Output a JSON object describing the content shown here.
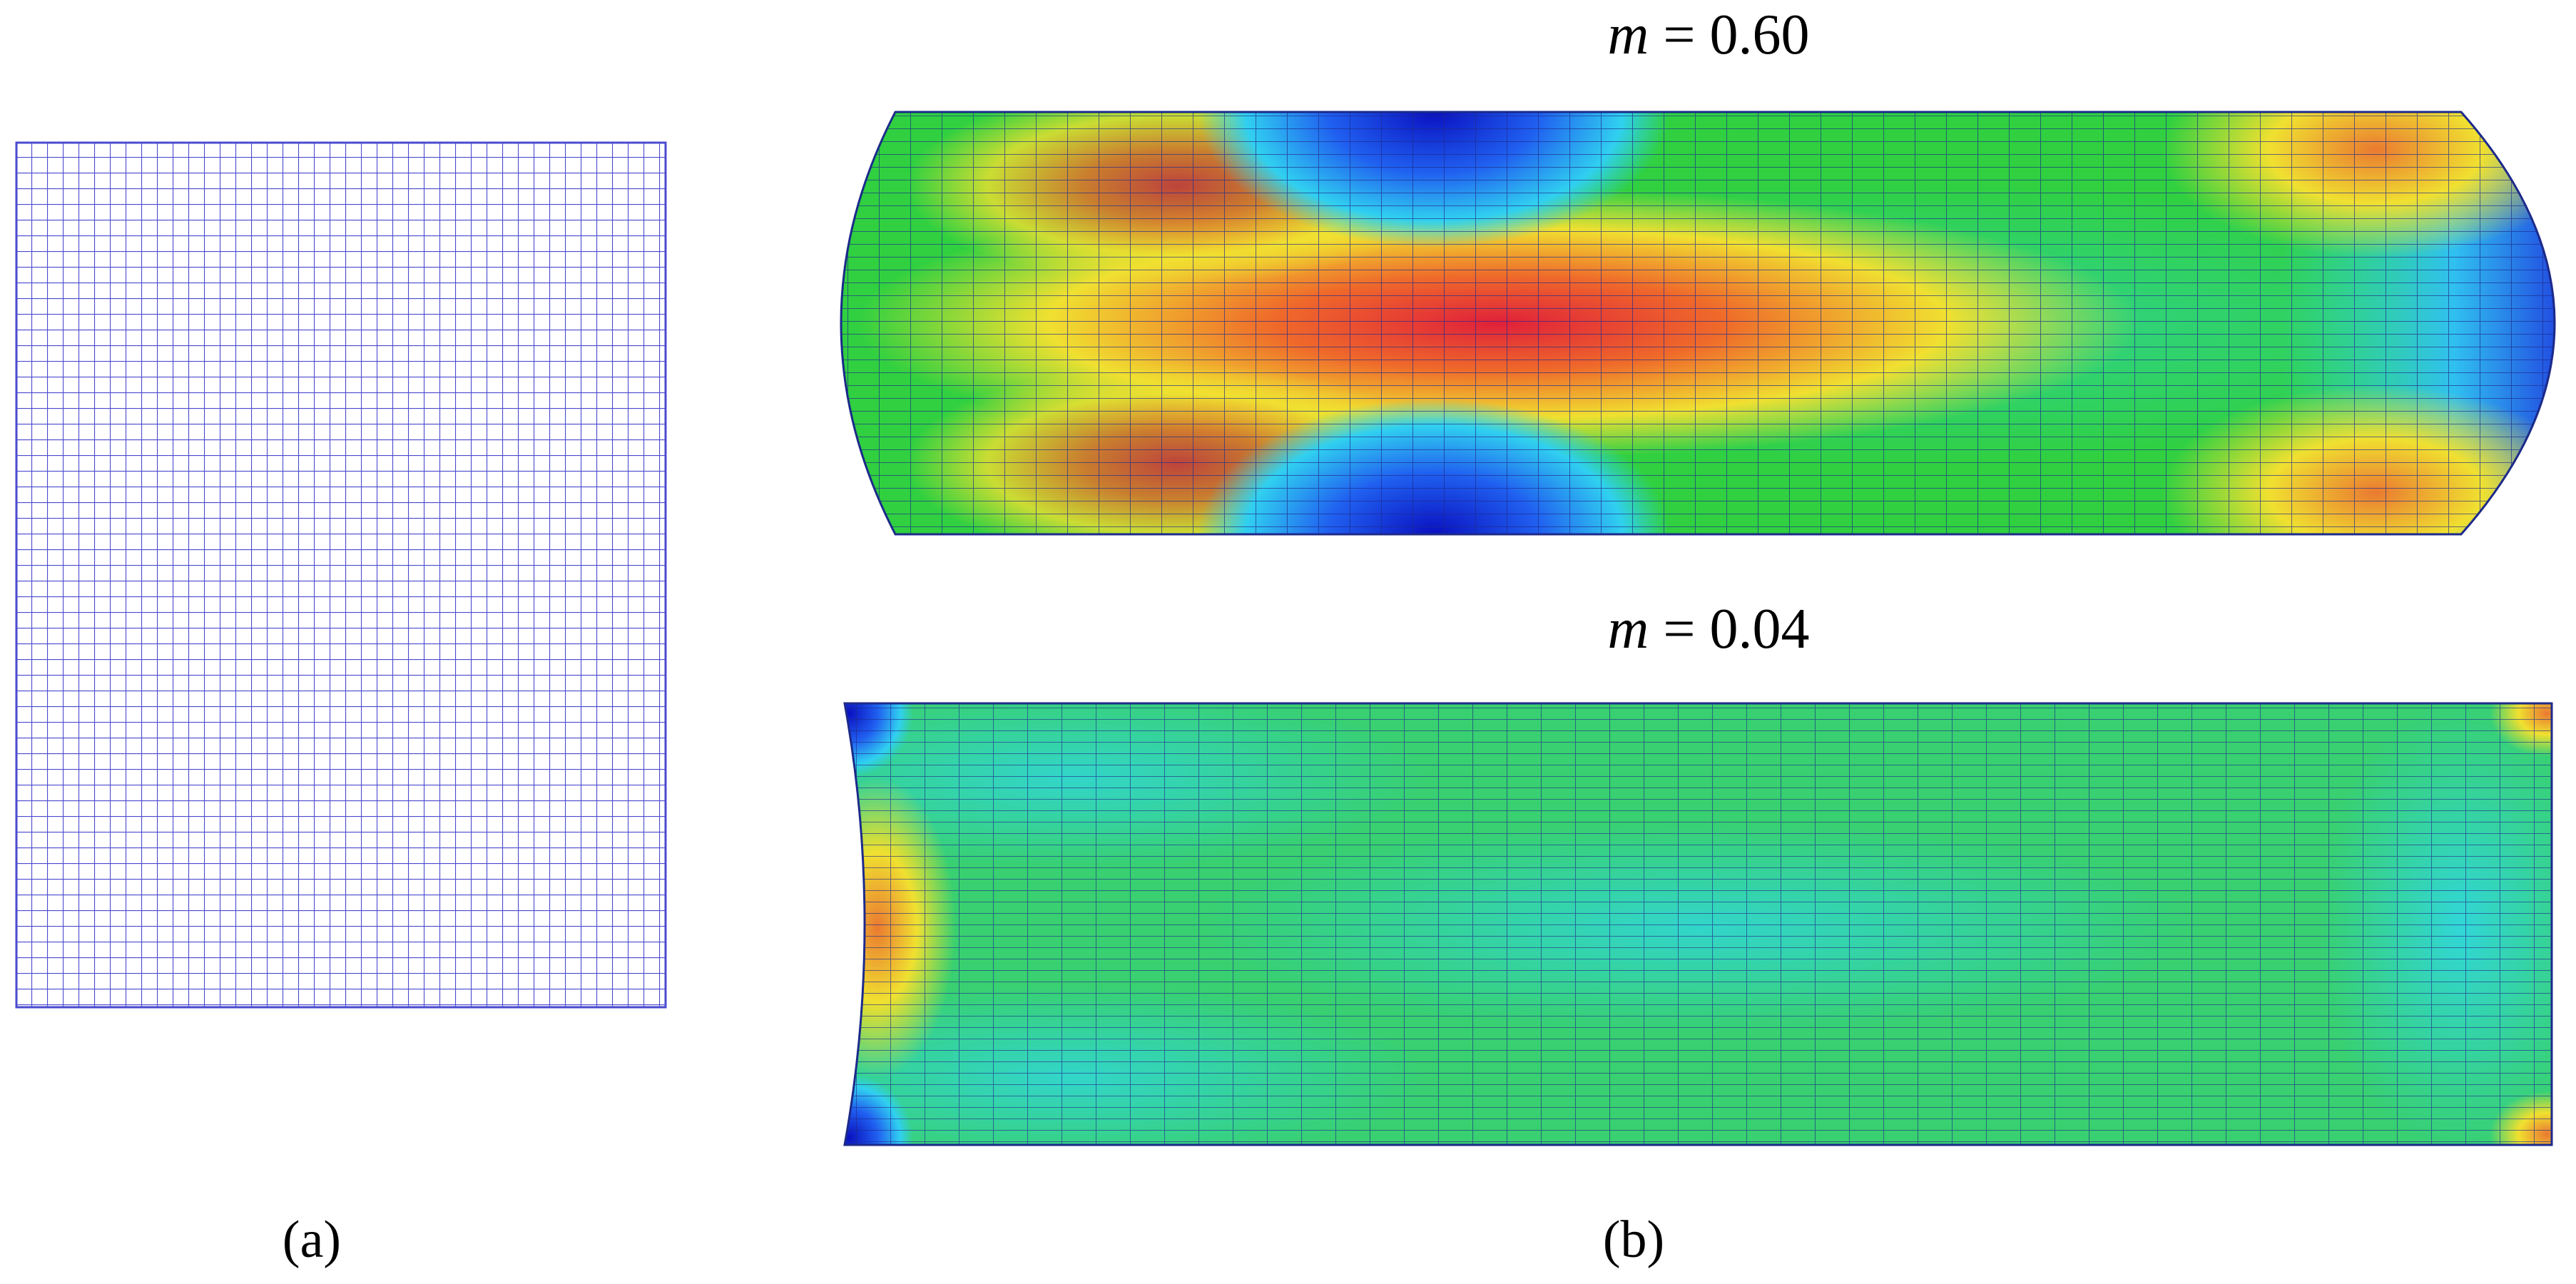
{
  "panel_a": {
    "caption": "(a)"
  },
  "panel_b": {
    "caption": "(b)",
    "top": {
      "symbol": "m",
      "rest": " = 0.60"
    },
    "bottom": {
      "symbol": "m",
      "rest": " = 0.04"
    }
  }
}
